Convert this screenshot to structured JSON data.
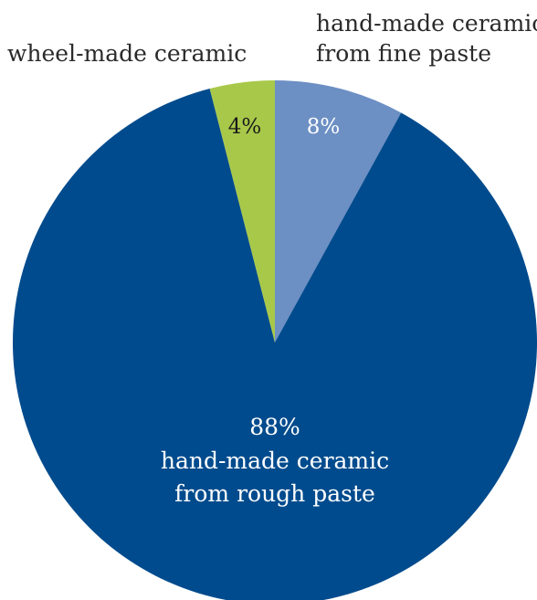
{
  "chart_data": {
    "type": "pie",
    "start_angle_deg": 0,
    "direction": "clockwise",
    "slices": [
      {
        "name": "hand-made ceramic from fine paste",
        "value": 8,
        "color": "#6c8fc4",
        "value_label": "8%",
        "label_lines": [
          "hand-made ceramic",
          "from fine paste"
        ]
      },
      {
        "name": "hand-made ceramic from rough paste",
        "value": 88,
        "color": "#004b8d",
        "value_label": "88%",
        "label_lines": [
          "hand-made ceramic",
          "from rough paste"
        ]
      },
      {
        "name": "wheel-made ceramic",
        "value": 4,
        "color": "#a8c84a",
        "value_label": "4%",
        "label_lines": [
          "wheel-made ceramic"
        ]
      }
    ]
  }
}
